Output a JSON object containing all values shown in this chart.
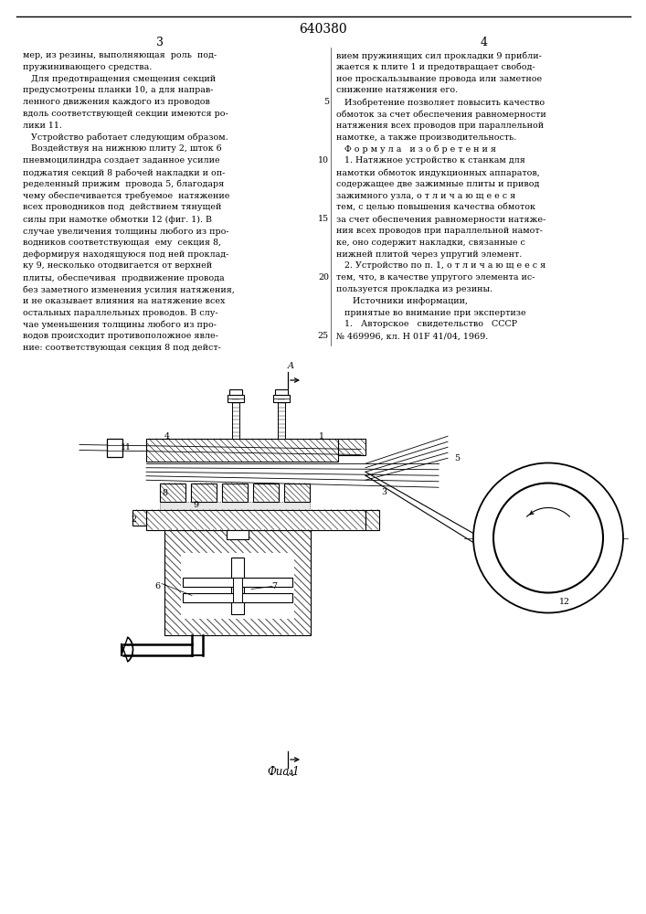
{
  "patent_number": "640380",
  "page_left": "3",
  "page_right": "4",
  "bg_color": "#ffffff",
  "text_color": "#000000",
  "left_col_lines": [
    "мер, из резины, выполняющая  роль  под-",
    "пружинивающего средства.",
    "   Для предотвращения смещения секций",
    "предусмотрены планки 10, а для направ-",
    "ленного движения каждого из проводов",
    "вдоль соответствующей секции имеются ро-",
    "лики 11.",
    "   Устройство работает следующим образом.",
    "   Воздействуя на нижнюю плиту 2, шток 6",
    "пневмоцилиндра создает заданное усилие",
    "поджатия секций 8 рабочей накладки и оп-",
    "ределенный прижим  провода 5, благодаря",
    "чему обеспечивается требуемое  натяжение",
    "всех проводников под  действием тянущей",
    "силы при намотке обмотки 12 (фиг. 1). В",
    "случае увеличения толщины любого из про-",
    "водников соответствующая  ему  секция 8,",
    "деформируя находящуюся под ней проклад-",
    "ку 9, несколько отодвигается от верхней",
    "плиты, обеспечивая  продвижение провода",
    "без заметного изменения усилия натяжения,",
    "и не оказывает влияния на натяжение всех",
    "остальных параллельных проводов. В слу-",
    "чае уменьшения толщины любого из про-",
    "водов происходит противоположное явле-",
    "ние: соответствующая секция 8 под дейст-"
  ],
  "right_col_lines": [
    "вием пружинящих сил прокладки 9 прибли-",
    "жается к плите 1 и предотвращает свобод-",
    "ное проскальзывание провода или заметное",
    "снижение натяжения его.",
    "   Изобретение позволяет повысить качество",
    "обмоток за счет обеспечения равномерности",
    "натяжения всех проводов при параллельной",
    "намотке, а также производительность.",
    "   Ф о р м у л а   и з о б р е т е н и я",
    "   1. Натяжное устройство к станкам для",
    "намотки обмоток индукционных аппаратов,",
    "содержащее две зажимные плиты и привод",
    "зажимного узла, о т л и ч а ю щ е е с я",
    "тем, с целью повышения качества обмоток",
    "за счет обеспечения равномерности натяже-",
    "ния всех проводов при параллельной намот-",
    "ке, оно содержит накладки, связанные с",
    "нижней плитой через упругий элемент.",
    "   2. Устройство по п. 1, о т л и ч а ю щ е е с я",
    "тем, что, в качестве упругого элемента ис-",
    "пользуется прокладка из резины.",
    "      Источники информации,",
    "   принятые во внимание при экспертизе",
    "   1.   Авторское   свидетельство   СССР",
    "№ 469996, кл. H 01F 41/04, 1969."
  ],
  "line_number_indices": [
    4,
    9,
    14,
    19,
    24
  ],
  "line_numbers": [
    "5",
    "10",
    "15",
    "20",
    "25"
  ],
  "fig_label": "Фиа.1"
}
